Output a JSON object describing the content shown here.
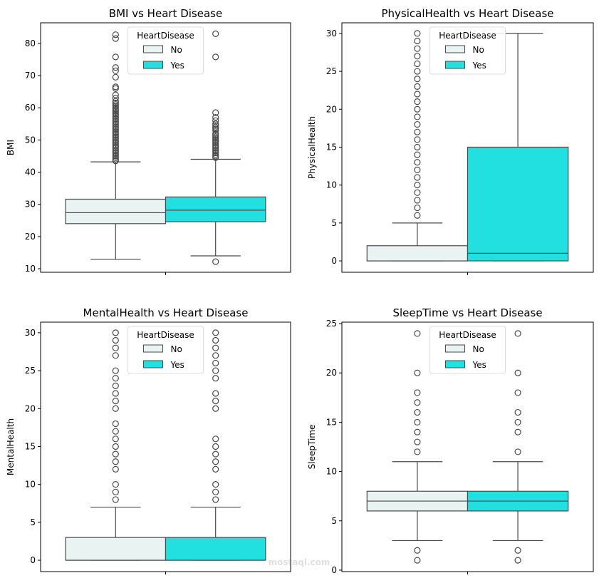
{
  "chart_data": [
    {
      "type": "box",
      "title": "BMI vs Heart Disease",
      "ylabel": "BMI",
      "ylim": [
        8.9,
        86.4
      ],
      "yticks": [
        10,
        20,
        30,
        40,
        50,
        60,
        70,
        80
      ],
      "legend": {
        "title": "HeartDisease",
        "placement": "top-center",
        "entries": [
          "No",
          "Yes"
        ]
      },
      "series": [
        {
          "name": "No",
          "color": "#e8f3f2",
          "whisker_low": 12.9,
          "q1": 24.0,
          "median": 27.4,
          "q3": 31.6,
          "whisker_high": 43.2,
          "outliers": [
            43.5,
            44,
            44.5,
            45,
            45.5,
            46,
            46.5,
            47,
            47.5,
            48,
            48.5,
            49,
            49.5,
            50,
            50.5,
            51,
            51.5,
            52,
            52.5,
            53,
            53.5,
            54,
            54.5,
            55,
            55.5,
            56,
            56.5,
            57,
            57.5,
            58,
            58.5,
            59,
            59.5,
            60,
            60.5,
            61,
            61.5,
            62,
            63,
            64,
            66,
            66.5,
            69.5,
            71.5,
            72.5,
            75.8,
            81.5,
            82.7
          ]
        },
        {
          "name": "Yes",
          "color": "#22e0e0",
          "whisker_low": 14.0,
          "q1": 24.6,
          "median": 28.2,
          "q3": 32.3,
          "whisker_high": 44.0,
          "outliers": [
            12.2,
            44.5,
            45,
            45.5,
            46,
            46.5,
            47,
            47.5,
            48,
            48.5,
            49,
            49.5,
            50,
            50.5,
            51,
            51.5,
            52,
            53,
            53.5,
            54,
            54.5,
            55,
            56,
            57,
            58.5,
            75.8,
            83
          ]
        }
      ]
    },
    {
      "type": "box",
      "title": "PhysicalHealth vs Heart Disease",
      "ylabel": "PhysicalHealth",
      "ylim": [
        -1.5,
        31.4
      ],
      "yticks": [
        0,
        5,
        10,
        15,
        20,
        25,
        30
      ],
      "legend": {
        "title": "HeartDisease",
        "placement": "top-center",
        "entries": [
          "No",
          "Yes"
        ]
      },
      "series": [
        {
          "name": "No",
          "color": "#e8f3f2",
          "whisker_low": 0,
          "q1": 0,
          "median": 0,
          "q3": 2,
          "whisker_high": 5,
          "outliers": [
            6,
            7,
            8,
            9,
            10,
            11,
            12,
            13,
            14,
            15,
            16,
            17,
            18,
            19,
            20,
            21,
            22,
            23,
            24,
            25,
            26,
            27,
            28,
            29,
            30
          ]
        },
        {
          "name": "Yes",
          "color": "#22e0e0",
          "whisker_low": 0,
          "q1": 0,
          "median": 1,
          "q3": 15,
          "whisker_high": 30,
          "outliers": []
        }
      ]
    },
    {
      "type": "box",
      "title": "MentalHealth vs Heart Disease",
      "ylabel": "MentalHealth",
      "ylim": [
        -1.5,
        31.4
      ],
      "yticks": [
        0,
        5,
        10,
        15,
        20,
        25,
        30
      ],
      "legend": {
        "title": "HeartDisease",
        "placement": "top-center",
        "entries": [
          "No",
          "Yes"
        ]
      },
      "series": [
        {
          "name": "No",
          "color": "#e8f3f2",
          "whisker_low": 0,
          "q1": 0,
          "median": 0,
          "q3": 3,
          "whisker_high": 7,
          "outliers": [
            8,
            9,
            10,
            12,
            13,
            14,
            15,
            16,
            17,
            18,
            20,
            21,
            22,
            23,
            24,
            25,
            27,
            28,
            29,
            30
          ]
        },
        {
          "name": "Yes",
          "color": "#22e0e0",
          "whisker_low": 0,
          "q1": 0,
          "median": 0,
          "q3": 3,
          "whisker_high": 7,
          "outliers": [
            8,
            9,
            10,
            12,
            13,
            14,
            15,
            16,
            20,
            21,
            22,
            24,
            25,
            26,
            27,
            28,
            29,
            30
          ]
        }
      ]
    },
    {
      "type": "box",
      "title": "SleepTime vs Heart Disease",
      "ylabel": "SleepTime",
      "ylim": [
        -0.15,
        25.15
      ],
      "yticks": [
        0,
        5,
        10,
        15,
        20,
        25
      ],
      "legend": {
        "title": "HeartDisease",
        "placement": "top-center",
        "entries": [
          "No",
          "Yes"
        ]
      },
      "series": [
        {
          "name": "No",
          "color": "#e8f3f2",
          "whisker_low": 3,
          "q1": 6,
          "median": 7,
          "q3": 8,
          "whisker_high": 11,
          "outliers": [
            1,
            2,
            12,
            13,
            14,
            15,
            16,
            17,
            18,
            20,
            24
          ]
        },
        {
          "name": "Yes",
          "color": "#22e0e0",
          "whisker_low": 3,
          "q1": 6,
          "median": 7,
          "q3": 8,
          "whisker_high": 11,
          "outliers": [
            1,
            2,
            12,
            14,
            15,
            16,
            18,
            20,
            24
          ]
        }
      ]
    }
  ],
  "watermark": "مستقل mostaql.com"
}
